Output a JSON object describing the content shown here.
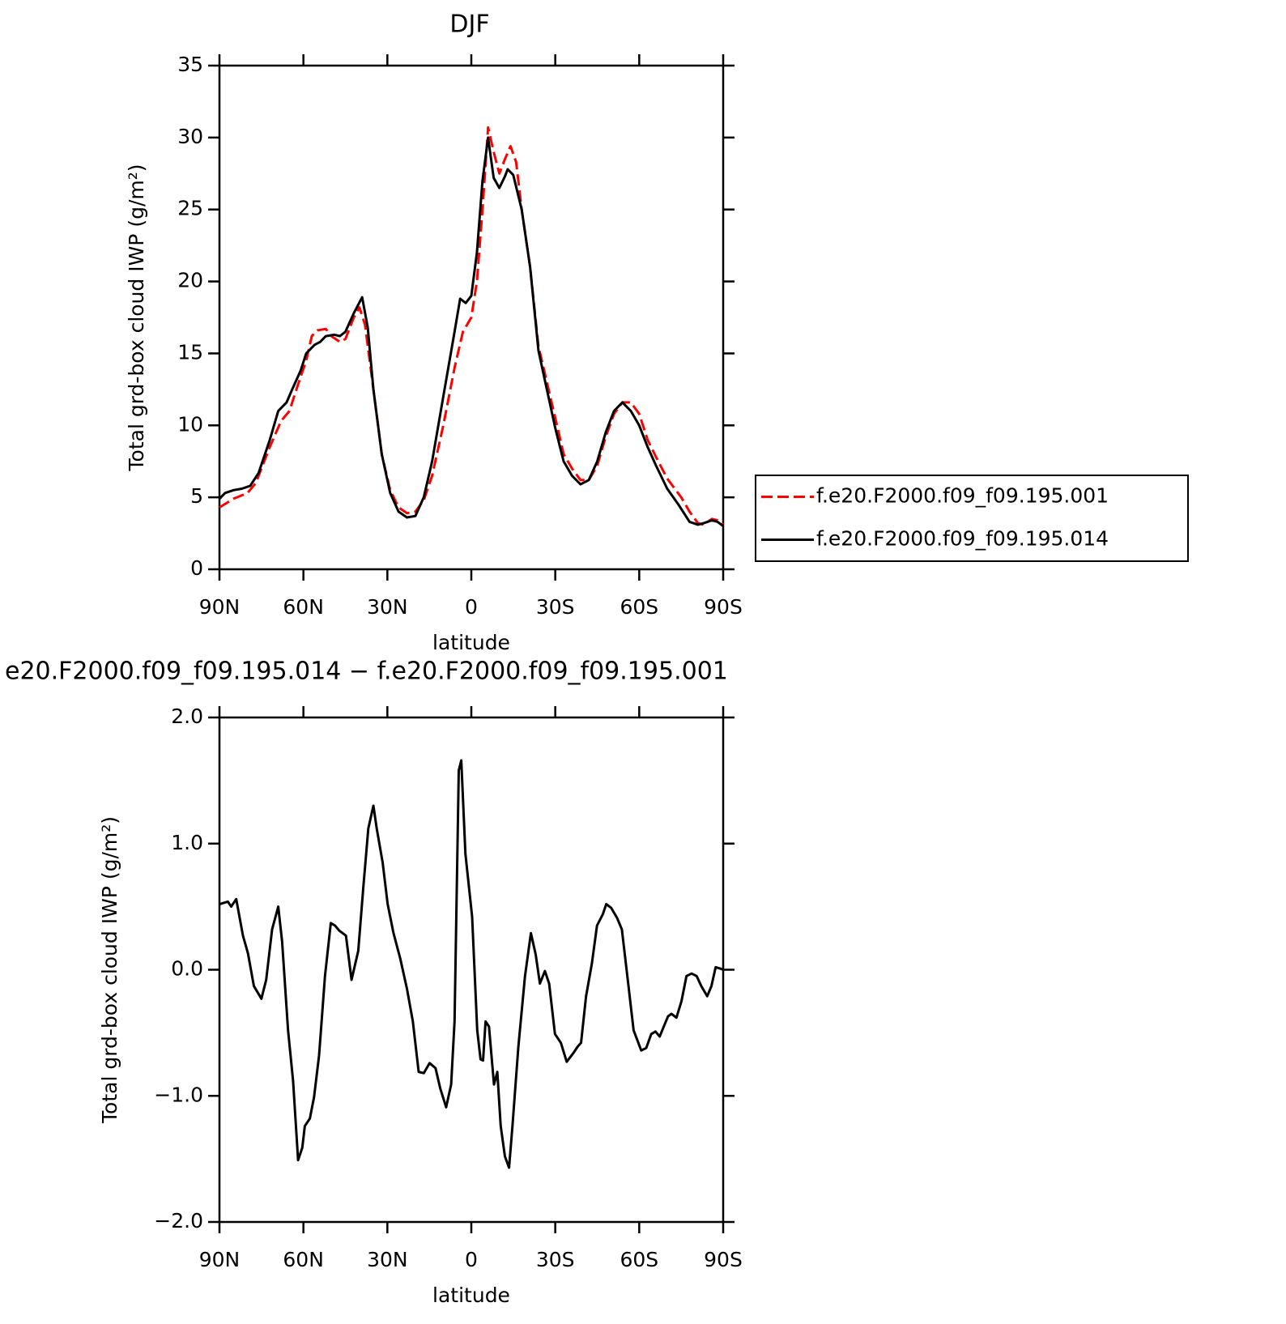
{
  "chart_data": [
    {
      "type": "line",
      "title": "DJF",
      "xlabel": "latitude",
      "ylabel": "Total grd-box cloud IWP (g/m²)",
      "xlim": [
        90,
        -90
      ],
      "xticks": [
        {
          "value": 90,
          "label": "90N"
        },
        {
          "value": 60,
          "label": "60N"
        },
        {
          "value": 30,
          "label": "30N"
        },
        0,
        {
          "value": -30,
          "label": "30S"
        },
        {
          "value": -60,
          "label": "60S"
        },
        {
          "value": -90,
          "label": "90S"
        }
      ],
      "ylim": [
        0,
        35
      ],
      "yticks": [
        0,
        5,
        10,
        15,
        20,
        25,
        30,
        35
      ],
      "legend": "right",
      "series": [
        {
          "name": "f.e20.F2000.f09_f09.195.001",
          "color": "#ff0000",
          "dashed": true,
          "x": [
            90,
            85,
            80,
            77,
            72,
            68,
            65,
            62,
            59,
            57,
            55,
            52,
            50,
            47,
            45,
            42,
            40,
            38,
            35,
            32,
            29,
            26,
            23,
            20,
            17,
            14,
            10,
            6,
            3,
            0,
            -2,
            -4,
            -6,
            -8,
            -10,
            -12,
            -14,
            -16,
            -18,
            -21,
            -24,
            -27,
            -30,
            -33,
            -36,
            -39,
            -42,
            -45,
            -48,
            -51,
            -54,
            -57,
            -60,
            -63,
            -66,
            -70,
            -75,
            -78,
            -81,
            -83,
            -86,
            -88,
            -90
          ],
          "values": [
            4.3,
            4.9,
            5.3,
            6.0,
            8.5,
            10.3,
            11.0,
            12.8,
            14.5,
            16.2,
            16.6,
            16.7,
            16.2,
            15.8,
            16.0,
            17.5,
            18.2,
            17.0,
            12.5,
            8.0,
            5.5,
            4.3,
            3.9,
            4.0,
            4.8,
            6.5,
            10.0,
            14.0,
            16.5,
            17.5,
            20,
            25,
            30.7,
            29,
            27.5,
            28.5,
            29.4,
            28.3,
            25,
            21,
            15.5,
            13,
            10.5,
            8,
            7,
            6.2,
            6.2,
            7.2,
            9.2,
            10.8,
            11.6,
            11.6,
            10.8,
            9.0,
            7.8,
            6.3,
            5.0,
            4.0,
            3.2,
            3.1,
            3.5,
            3.4,
            3.1
          ]
        },
        {
          "name": "f.e20.F2000.f09_f09.195.014",
          "color": "#000000",
          "dashed": false,
          "x": [
            90,
            88,
            85,
            82,
            79,
            76,
            72,
            69,
            66,
            64,
            61,
            59,
            56,
            54,
            52,
            49,
            47,
            45,
            42,
            39,
            37,
            35,
            32,
            29,
            26,
            23,
            20,
            17,
            14,
            10,
            6,
            4,
            2,
            0,
            -2,
            -4,
            -6,
            -8,
            -10,
            -12,
            -13,
            -15,
            -18,
            -21,
            -24,
            -27,
            -30,
            -33,
            -36,
            -39,
            -42,
            -45,
            -48,
            -51,
            -54,
            -57,
            -60,
            -63,
            -66,
            -70,
            -74,
            -78,
            -81,
            -83,
            -86,
            -88,
            -90
          ],
          "values": [
            4.9,
            5.3,
            5.5,
            5.6,
            5.8,
            6.7,
            9.0,
            11.0,
            11.6,
            12.5,
            13.8,
            15.0,
            15.6,
            15.8,
            16.2,
            16.3,
            16.2,
            16.5,
            17.8,
            18.9,
            16.8,
            12.5,
            8.0,
            5.3,
            4.0,
            3.6,
            3.7,
            5.0,
            7.5,
            12.0,
            16.5,
            18.8,
            18.5,
            19.0,
            22,
            27,
            30.0,
            27.2,
            26.5,
            27.3,
            27.8,
            27.4,
            25,
            21,
            15.2,
            12.5,
            9.8,
            7.5,
            6.5,
            5.9,
            6.2,
            7.5,
            9.5,
            11.0,
            11.6,
            11.0,
            10.0,
            8.5,
            7.2,
            5.6,
            4.5,
            3.3,
            3.1,
            3.2,
            3.4,
            3.3,
            3.0
          ]
        }
      ]
    },
    {
      "type": "line",
      "title": "e20.F2000.f09_f09.195.014 − f.e20.F2000.f09_f09.195.001",
      "xlabel": "latitude",
      "ylabel": "Total grd-box cloud IWP (g/m²)",
      "xlim": [
        90,
        -90
      ],
      "xticks": [
        {
          "value": 90,
          "label": "90N"
        },
        {
          "value": 60,
          "label": "60N"
        },
        {
          "value": 30,
          "label": "30N"
        },
        0,
        {
          "value": -30,
          "label": "30S"
        },
        {
          "value": -60,
          "label": "60S"
        },
        {
          "value": -90,
          "label": "90S"
        }
      ],
      "ylim": [
        -2,
        2
      ],
      "yticks": [
        {
          "value": -2,
          "label": "−2.0"
        },
        {
          "value": -1,
          "label": "−1.0"
        },
        {
          "value": 0,
          "label": "0.0"
        },
        {
          "value": 1,
          "label": "1.0"
        },
        {
          "value": 2,
          "label": "2.0"
        }
      ],
      "series": [
        {
          "color": "#000000",
          "dashed": false,
          "x": [
            90,
            87,
            85.8,
            84,
            81.6,
            79.8,
            77.7,
            75,
            73.3,
            71.2,
            69,
            67.6,
            65.5,
            63.7,
            61.9,
            60.4,
            59.5,
            57.7,
            56.2,
            54.4,
            52.3,
            50.2,
            48.7,
            47.2,
            44.8,
            42.8,
            40.4,
            38.6,
            36.8,
            35,
            33.8,
            31.7,
            29.9,
            27.8,
            25.4,
            23,
            20.9,
            18.8,
            17,
            14.9,
            12.8,
            11.1,
            9,
            7.2,
            6,
            4.5,
            3.6,
            2.1,
            -0.3,
            -2.1,
            -3.3,
            -4.2,
            -5.1,
            -6.3,
            -8.1,
            -9.3,
            -10.5,
            -12,
            -13.5,
            -14.7,
            -16.8,
            -19.2,
            -21.3,
            -23,
            -24.5,
            -26.3,
            -27.8,
            -29.9,
            -32,
            -34.1,
            -36.5,
            -38,
            -39.2,
            -41,
            -43.1,
            -44.9,
            -47,
            -48.2,
            -50,
            -52.1,
            -53.8,
            -55.9,
            -58,
            -60.7,
            -62.5,
            -64.3,
            -65.8,
            -67.3,
            -68.8,
            -70.3,
            -71.5,
            -73.3,
            -75.1,
            -76.9,
            -78.7,
            -80.5,
            -82.2,
            -84.3,
            -85.8,
            -87.3,
            -88.8,
            -90
          ],
          "values": [
            0.52,
            0.54,
            0.5,
            0.56,
            0.27,
            0.13,
            -0.13,
            -0.23,
            -0.08,
            0.32,
            0.5,
            0.22,
            -0.48,
            -0.88,
            -1.51,
            -1.41,
            -1.24,
            -1.18,
            -1.01,
            -0.68,
            -0.05,
            0.37,
            0.35,
            0.31,
            0.27,
            -0.08,
            0.15,
            0.65,
            1.12,
            1.3,
            1.12,
            0.85,
            0.52,
            0.29,
            0.09,
            -0.15,
            -0.41,
            -0.81,
            -0.82,
            -0.74,
            -0.78,
            -0.94,
            -1.09,
            -0.91,
            -0.41,
            1.58,
            1.66,
            0.92,
            0.42,
            -0.48,
            -0.71,
            -0.72,
            -0.41,
            -0.45,
            -0.91,
            -0.81,
            -1.24,
            -1.48,
            -1.57,
            -1.24,
            -0.61,
            -0.05,
            0.29,
            0.12,
            -0.11,
            -0.01,
            -0.11,
            -0.51,
            -0.58,
            -0.73,
            -0.66,
            -0.61,
            -0.58,
            -0.21,
            0.05,
            0.35,
            0.44,
            0.52,
            0.49,
            0.41,
            0.32,
            -0.08,
            -0.48,
            -0.64,
            -0.62,
            -0.51,
            -0.49,
            -0.53,
            -0.45,
            -0.37,
            -0.35,
            -0.38,
            -0.25,
            -0.05,
            -0.03,
            -0.05,
            -0.13,
            -0.21,
            -0.13,
            0.02,
            0.01,
            0
          ]
        }
      ]
    }
  ]
}
